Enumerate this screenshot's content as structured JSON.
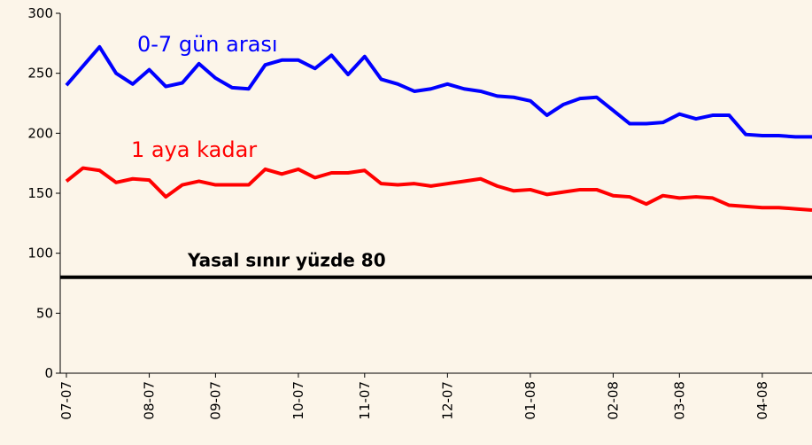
{
  "chart_data": {
    "type": "line",
    "categories": [
      "07-07",
      null,
      null,
      null,
      null,
      "08-07",
      null,
      null,
      null,
      "09-07",
      null,
      null,
      null,
      null,
      "10-07",
      null,
      null,
      null,
      "11-07",
      null,
      null,
      null,
      null,
      "12-07",
      null,
      null,
      null,
      null,
      "01-08",
      null,
      null,
      null,
      null,
      "02-08",
      null,
      null,
      null,
      "03-08",
      null,
      null,
      null,
      null,
      "04-08",
      null,
      null,
      null
    ],
    "series": [
      {
        "name": "0-7 gün arası",
        "color": "#0000ff",
        "values": [
          240,
          256,
          272,
          250,
          241,
          253,
          239,
          242,
          258,
          246,
          238,
          237,
          257,
          261,
          261,
          254,
          265,
          249,
          264,
          245,
          241,
          235,
          237,
          241,
          237,
          235,
          231,
          230,
          227,
          215,
          224,
          229,
          230,
          219,
          208,
          208,
          209,
          216,
          212,
          215,
          215,
          199,
          198,
          198,
          197,
          197
        ]
      },
      {
        "name": "1 aya kadar",
        "color": "#ff0000",
        "values": [
          160,
          171,
          169,
          159,
          162,
          161,
          147,
          157,
          160,
          157,
          157,
          157,
          170,
          166,
          170,
          163,
          167,
          167,
          169,
          158,
          157,
          158,
          156,
          158,
          160,
          162,
          156,
          152,
          153,
          149,
          151,
          153,
          153,
          148,
          147,
          141,
          148,
          146,
          147,
          146,
          140,
          139,
          138,
          138,
          137,
          136
        ]
      }
    ],
    "threshold": {
      "value": 80,
      "label": "Yasal sınır yüzde 80",
      "color": "#000000"
    },
    "ylim": [
      0,
      300
    ],
    "yticks": [
      0,
      50,
      100,
      150,
      200,
      250,
      300
    ]
  }
}
